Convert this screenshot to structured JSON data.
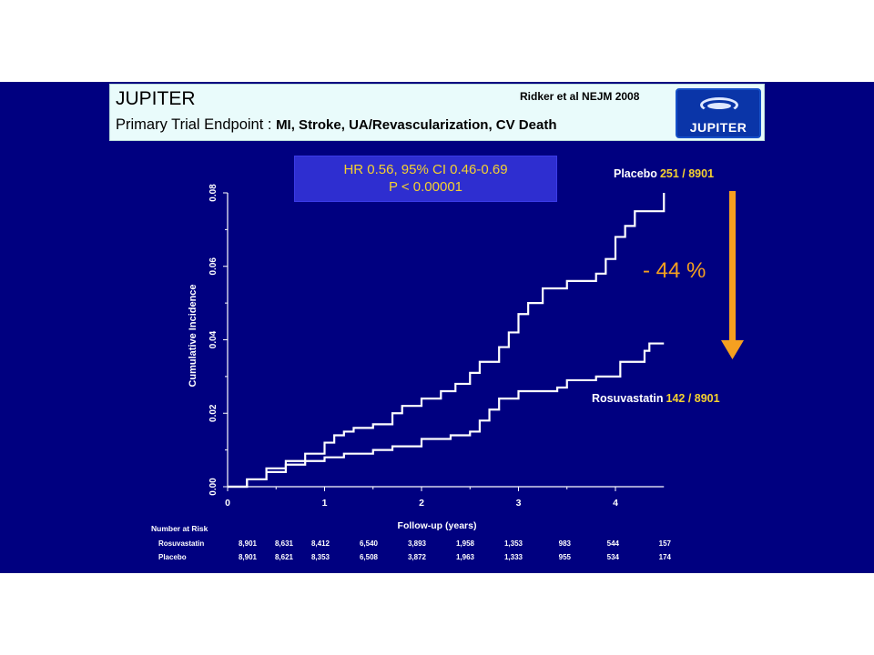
{
  "header": {
    "title": "JUPITER",
    "subtitle_prefix": "Primary Trial Endpoint : ",
    "subtitle_detail": "MI, Stroke, UA/Revascularization, CV Death",
    "citation": "Ridker et al NEJM 2008",
    "logo_text": "JUPITER"
  },
  "stats_box": {
    "line1": "HR 0.56, 95% CI 0.46-0.69",
    "line2": "P < 0.00001"
  },
  "annotations": {
    "placebo_label": "Placebo",
    "placebo_count": "251 / 8901",
    "rosuvastatin_label": "Rosuvastatin",
    "rosuvastatin_count": "142 / 8901",
    "reduction": "- 44 %"
  },
  "colors": {
    "background": "#000080",
    "header_background": "#e9fbfb",
    "curve": "#ffffff",
    "highlight": "#f5d130",
    "arrow": "#f5a020",
    "stats_box": "#2e2ed0"
  },
  "chart_data": {
    "type": "line",
    "step": true,
    "xlabel": "Follow-up (years)",
    "ylabel": "Cumulative Incidence",
    "xlim": [
      0,
      4.5
    ],
    "ylim": [
      0,
      0.08
    ],
    "xticks": [
      "0",
      "1",
      "2",
      "3",
      "4"
    ],
    "yticks": [
      "0.00",
      "0.02",
      "0.04",
      "0.06",
      "0.08"
    ],
    "grid": false,
    "series": [
      {
        "name": "Placebo",
        "points": [
          [
            0,
            0
          ],
          [
            0.2,
            0.002
          ],
          [
            0.4,
            0.005
          ],
          [
            0.6,
            0.007
          ],
          [
            0.8,
            0.009
          ],
          [
            1.0,
            0.012
          ],
          [
            1.1,
            0.014
          ],
          [
            1.2,
            0.015
          ],
          [
            1.3,
            0.016
          ],
          [
            1.5,
            0.017
          ],
          [
            1.7,
            0.02
          ],
          [
            1.8,
            0.022
          ],
          [
            2.0,
            0.024
          ],
          [
            2.2,
            0.026
          ],
          [
            2.35,
            0.028
          ],
          [
            2.5,
            0.031
          ],
          [
            2.6,
            0.034
          ],
          [
            2.8,
            0.038
          ],
          [
            2.9,
            0.042
          ],
          [
            3.0,
            0.047
          ],
          [
            3.1,
            0.05
          ],
          [
            3.25,
            0.054
          ],
          [
            3.5,
            0.056
          ],
          [
            3.7,
            0.056
          ],
          [
            3.8,
            0.058
          ],
          [
            3.9,
            0.062
          ],
          [
            4.0,
            0.068
          ],
          [
            4.1,
            0.071
          ],
          [
            4.2,
            0.075
          ],
          [
            4.4,
            0.075
          ],
          [
            4.5,
            0.08
          ]
        ]
      },
      {
        "name": "Rosuvastatin",
        "points": [
          [
            0,
            0
          ],
          [
            0.2,
            0.002
          ],
          [
            0.4,
            0.004
          ],
          [
            0.6,
            0.006
          ],
          [
            0.8,
            0.007
          ],
          [
            1.0,
            0.008
          ],
          [
            1.2,
            0.009
          ],
          [
            1.5,
            0.01
          ],
          [
            1.7,
            0.011
          ],
          [
            2.0,
            0.013
          ],
          [
            2.3,
            0.014
          ],
          [
            2.5,
            0.015
          ],
          [
            2.6,
            0.018
          ],
          [
            2.7,
            0.021
          ],
          [
            2.8,
            0.024
          ],
          [
            3.0,
            0.026
          ],
          [
            3.2,
            0.026
          ],
          [
            3.4,
            0.027
          ],
          [
            3.5,
            0.029
          ],
          [
            3.7,
            0.029
          ],
          [
            3.8,
            0.03
          ],
          [
            4.0,
            0.03
          ],
          [
            4.05,
            0.034
          ],
          [
            4.25,
            0.034
          ],
          [
            4.3,
            0.037
          ],
          [
            4.35,
            0.039
          ],
          [
            4.5,
            0.039
          ]
        ]
      }
    ]
  },
  "risk_table": {
    "title": "Number at Risk",
    "rows": [
      {
        "label": "Rosuvastatin",
        "values": [
          "8,901",
          "8,631",
          "8,412",
          "6,540",
          "3,893",
          "1,958",
          "1,353",
          "983",
          "544",
          "157"
        ]
      },
      {
        "label": "Placebo",
        "values": [
          "8,901",
          "8,621",
          "8,353",
          "6,508",
          "3,872",
          "1,963",
          "1,333",
          "955",
          "534",
          "174"
        ]
      }
    ]
  }
}
